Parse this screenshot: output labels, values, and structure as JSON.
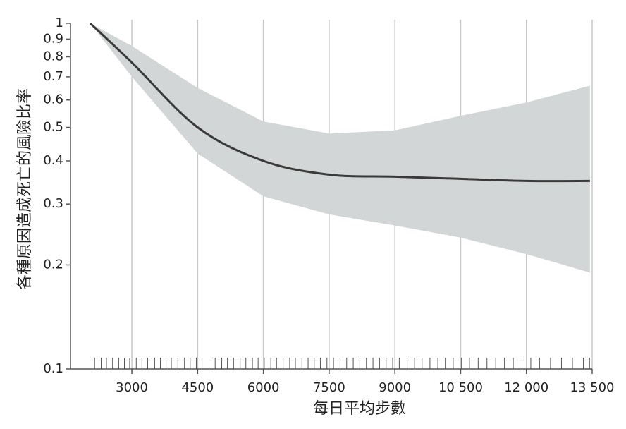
{
  "chart_data": {
    "type": "line",
    "x_label": "每日平均步數",
    "y_label": "各種原因造成死亡的風險比率",
    "x": [
      2050,
      3000,
      4500,
      6000,
      7500,
      9000,
      10500,
      12000,
      13450
    ],
    "values": [
      1.0,
      0.77,
      0.5,
      0.4,
      0.365,
      0.36,
      0.355,
      0.35,
      0.35
    ],
    "lower": [
      1.0,
      0.7,
      0.42,
      0.316,
      0.28,
      0.26,
      0.24,
      0.215,
      0.19
    ],
    "upper": [
      1.0,
      0.86,
      0.65,
      0.52,
      0.48,
      0.49,
      0.54,
      0.59,
      0.66
    ],
    "color": "#3a3a3a",
    "band_color": "#d3d6d6",
    "rug": [
      2150,
      2300,
      2420,
      2560,
      2700,
      2830,
      2950,
      3100,
      3230,
      3360,
      3520,
      3650,
      3780,
      3900,
      4050,
      4200,
      4330,
      4470,
      4600,
      4760,
      4900,
      5050,
      5180,
      5320,
      5470,
      5600,
      5750,
      5880,
      6020,
      6170,
      6300,
      6450,
      6600,
      6730,
      6880,
      7020,
      7160,
      7300,
      7450,
      7600,
      7750,
      7900,
      8050,
      8200,
      8350,
      8500,
      8650,
      8800,
      8950,
      9100,
      9280,
      9450,
      9620,
      9800,
      9980,
      10150,
      10330,
      10520,
      10700,
      10900,
      11100,
      11300,
      11500,
      11700,
      11900,
      12100,
      12300,
      12550,
      12800,
      13050,
      13300,
      13440
    ],
    "xlim": [
      1600,
      13500
    ],
    "xticks": [
      3000,
      4500,
      6000,
      7500,
      9000,
      {
        "value": 10500,
        "label": "10 500"
      },
      {
        "value": 12000,
        "label": "12 000"
      },
      {
        "value": 13500,
        "label": "13 500"
      }
    ],
    "ylim": [
      0.1,
      1
    ],
    "yticks": [
      0.1,
      0.2,
      0.3,
      0.4,
      0.5,
      0.6,
      0.7,
      0.8,
      0.9,
      1
    ],
    "log_y": true,
    "grid": "x"
  }
}
